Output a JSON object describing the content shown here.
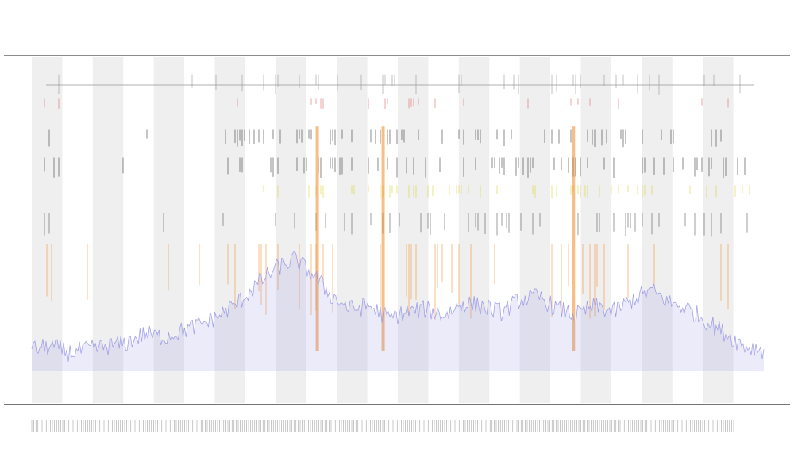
{
  "chart_data": {
    "type": "area",
    "title": "",
    "subtitle_lines": [
      "",
      ""
    ],
    "xlabel": "",
    "ylabel": "",
    "legend_position": "top-left",
    "legend_entries": [
      "",
      "",
      "",
      ""
    ],
    "num_bands": 12,
    "grid": false,
    "ylim": [
      0,
      1
    ],
    "colors": {
      "coverage": "#8f8fe6",
      "orange_track": "#f08a24",
      "yellow_track": "#d8cc1a",
      "black_track": "#222222",
      "red_track": "#e05555",
      "gray_track": "#888888",
      "band": "#efefef"
    },
    "series": [
      {
        "name": "",
        "values": [
          0.07,
          0.08,
          0.06,
          0.07,
          0.08,
          0.09,
          0.12,
          0.11,
          0.13,
          0.15,
          0.18,
          0.22,
          0.28,
          0.33,
          0.36,
          0.31,
          0.24,
          0.2,
          0.21,
          0.17,
          0.19,
          0.2,
          0.18,
          0.22,
          0.21,
          0.19,
          0.23,
          0.24,
          0.2,
          0.18,
          0.21,
          0.19,
          0.23,
          0.26,
          0.22,
          0.2,
          0.16,
          0.12,
          0.08,
          0.07
        ]
      }
    ],
    "tracks": [
      {
        "name": "",
        "color": "#888888",
        "row": 0.05,
        "height": 0.06,
        "density": 0.55
      },
      {
        "name": "",
        "color": "#e05555",
        "row": 0.12,
        "height": 0.03,
        "density": 0.25
      },
      {
        "name": "",
        "color": "#222222",
        "row": 0.21,
        "height": 0.05,
        "density": 0.6
      },
      {
        "name": "",
        "color": "#222222",
        "row": 0.29,
        "height": 0.06,
        "density": 0.6
      },
      {
        "name": "",
        "color": "#d8cc1a",
        "row": 0.37,
        "height": 0.04,
        "density": 0.45
      },
      {
        "name": "",
        "color": "#444444",
        "row": 0.45,
        "height": 0.07,
        "density": 0.5
      },
      {
        "name": "",
        "color": "#f08a24",
        "row": 0.54,
        "height": 0.22,
        "density": 0.35
      }
    ],
    "hotspots": [
      0.39,
      0.48,
      0.74
    ]
  }
}
